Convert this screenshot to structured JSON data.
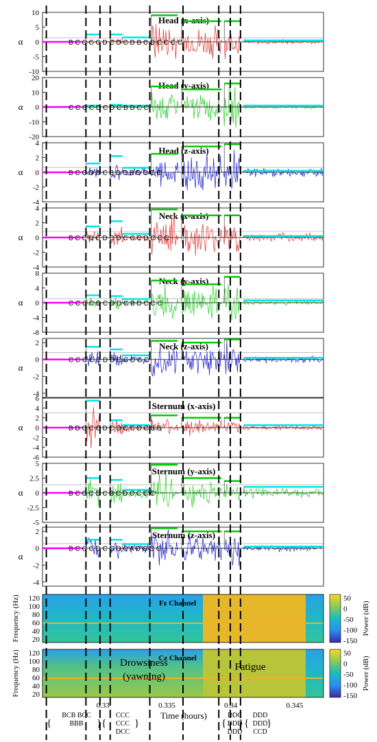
{
  "chart_data": {
    "type": "line",
    "x_axis": {
      "label": "Time (hours)",
      "ticks": [
        "0.33",
        "0.335",
        "0.34",
        "0.345"
      ],
      "range": [
        0.3258,
        0.3478
      ]
    },
    "y_label": "α",
    "event_lines_hours": [
      0.3261,
      0.3292,
      0.3303,
      0.3311,
      0.3342,
      0.3368,
      0.3396,
      0.3405,
      0.3413
    ],
    "level_line_colors": {
      "baseline": "#ff00ff",
      "drowsy": "#00e5e5",
      "fatigue": "#00cc00"
    },
    "panels": [
      {
        "title": "Head (x-axis)",
        "ylim": [
          -10,
          10
        ],
        "yticks": [
          "10",
          "5",
          "0",
          "-5",
          "-10"
        ],
        "color": "#e03030",
        "label_row": "B  C  C  C  C  D  C  D  C  D  B  C  D  C  C  C  C",
        "amp": [
          0,
          0.8,
          1.2,
          0.5,
          9,
          7,
          6,
          1
        ],
        "bars": [
          0,
          2.5,
          2.5,
          1.5,
          9,
          7,
          7,
          0.5
        ]
      },
      {
        "title": "Head (y-axis)",
        "ylim": [
          -20,
          20
        ],
        "yticks": [
          "20",
          "10",
          "0",
          "-10",
          "-20"
        ],
        "color": "#22cc22",
        "label_row": "C  C  C  C  D  C  D  C  B  D  C  C",
        "amp": [
          0,
          1,
          1.5,
          0.8,
          14,
          11,
          16,
          1.5
        ],
        "bars": [
          0,
          1,
          1.5,
          1,
          14,
          12,
          16,
          1
        ]
      },
      {
        "title": "Head (z-axis)",
        "ylim": [
          -4,
          4
        ],
        "yticks": [
          "4",
          "2",
          "0",
          "-2",
          "-4"
        ],
        "color": "#1a1acc",
        "label_row": "B  C  C  D  C  C  B  D  C  B  D  C  C  C",
        "amp": [
          0,
          1.2,
          1.5,
          0.8,
          2.5,
          3,
          3.5,
          0.7
        ],
        "bars": [
          0,
          1.2,
          2.2,
          0.6,
          2.5,
          3.5,
          4,
          0.2
        ]
      },
      {
        "title": "Neck (x-axis)",
        "ylim": [
          -4,
          4
        ],
        "yticks": [
          "4",
          "2",
          "0",
          "-2",
          "-4"
        ],
        "color": "#e03030",
        "label_row": "B  C  C  D  C  D  C  D  C  C  C  D  C  C  C",
        "amp": [
          0,
          1.2,
          1.8,
          0.6,
          3.5,
          2.8,
          3,
          0.7
        ],
        "bars": [
          0,
          1.5,
          2.2,
          0.5,
          4,
          3,
          3,
          0.2
        ]
      },
      {
        "title": "Neck (y-axis)",
        "ylim": [
          -8,
          8
        ],
        "yticks": [
          "8",
          "4",
          "0",
          "-4",
          "-8"
        ],
        "color": "#22cc22",
        "label_row": "C  C  C  C  D  C  D  D  C  B  D  C  C  C",
        "amp": [
          0,
          1.5,
          2,
          0.8,
          6,
          5,
          7,
          0.8
        ],
        "bars": [
          0,
          2,
          1.8,
          1,
          6,
          5,
          7,
          0.6
        ]
      },
      {
        "title": "Neck (z-axis)",
        "ylim": [
          -4.5,
          2.5
        ],
        "yticks": [
          "2",
          "0",
          "-2",
          "-4"
        ],
        "color": "#1a1acc",
        "label_row": "C  C  C  C  C  D  D  C  C  D  C  C",
        "amp": [
          0,
          1.2,
          1.5,
          0.5,
          2.2,
          2,
          2.5,
          0.5
        ],
        "bars": [
          0,
          1.5,
          1.2,
          0.5,
          2.2,
          2,
          2.5,
          0.2
        ]
      },
      {
        "title": "Sternum (x-axis)",
        "ylim": [
          -6,
          6
        ],
        "yticks": [
          "6",
          "4",
          "2",
          "0",
          "-2",
          "-4",
          "-6"
        ],
        "color": "#e03030",
        "label_row": "B  D  C  C  C  D  C  D  C  C  D  C  B  B",
        "amp": [
          0,
          5,
          2.5,
          1,
          2,
          2,
          1.5,
          0.6
        ],
        "bars": [
          0,
          5.5,
          1.5,
          0.5,
          2.5,
          2,
          2,
          0.5
        ]
      },
      {
        "title": "Sternum (y-axis)",
        "ylim": [
          -5,
          5
        ],
        "yticks": [
          "5",
          "2.5",
          "0",
          "-2.5",
          "-5"
        ],
        "color": "#22cc22",
        "label_row": "B  C  C  C  D  C  B  C  D  C  C  C  C",
        "amp": [
          0,
          3.5,
          2.5,
          1,
          4,
          3,
          2,
          1
        ],
        "bars": [
          0,
          2.5,
          2.2,
          0.5,
          5,
          2.5,
          2,
          1
        ]
      },
      {
        "title": "Sternum (z-axis)",
        "ylim": [
          -4.5,
          2.5
        ],
        "yticks": [
          "2",
          "0",
          "-2",
          "-4"
        ],
        "color": "#1a1acc",
        "label_row": "B  C  C  C  D  C  C  D  C  A  D  C  C  C",
        "amp": [
          0,
          1.5,
          1.5,
          0.7,
          2.5,
          2,
          2.5,
          0.5
        ],
        "bars": [
          0,
          1,
          1,
          0.5,
          2.5,
          2,
          2,
          0.2
        ]
      }
    ],
    "spectrograms": [
      {
        "title": "Fz Channel",
        "ylabel": "Frequency (Hz)",
        "yticks": [
          "120",
          "100",
          "80",
          "60",
          "40",
          "20"
        ]
      },
      {
        "title": "Cz Channel",
        "ylabel": "Frequency (Hz)",
        "yticks": [
          "120",
          "100",
          "80",
          "60",
          "40",
          "20"
        ],
        "phase_labels": [
          "Drowsiness",
          "(yawning)",
          "Fatigue"
        ]
      }
    ],
    "colorbar": {
      "label": "Power (dB)",
      "ticks": [
        "50",
        "0",
        "-50",
        "-100",
        "-150"
      ],
      "range": [
        -150,
        60
      ]
    },
    "groups": [
      {
        "lines": [
          "BCB BCC",
          "BBB"
        ]
      },
      {
        "lines": [
          "CCC",
          "CCC",
          "DCC"
        ]
      },
      {
        "lines": [
          "DDC",
          "DDD",
          "DDD"
        ]
      },
      {
        "lines": [
          "DDD",
          "DDD",
          "CCD"
        ]
      }
    ]
  }
}
